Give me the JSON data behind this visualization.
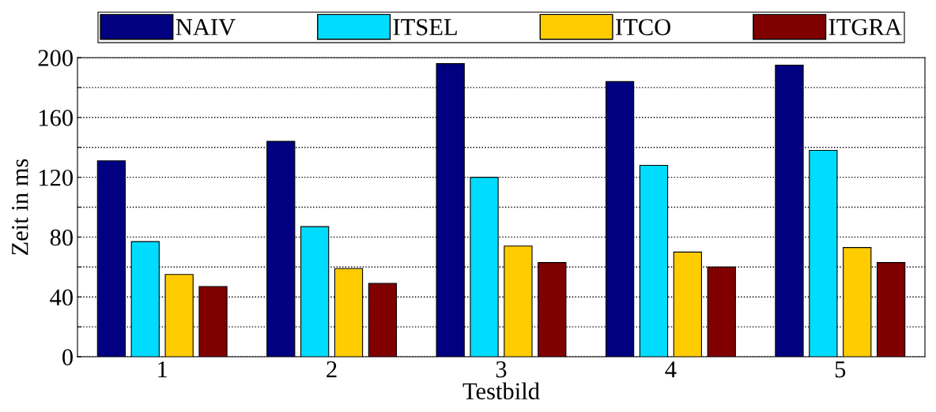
{
  "chart_data": {
    "type": "bar",
    "xlabel": "Testbild",
    "ylabel": "Zeit in ms",
    "categories": [
      "1",
      "2",
      "3",
      "4",
      "5"
    ],
    "series": [
      {
        "name": "NAIV",
        "color": "#000080",
        "values": [
          131,
          144,
          196,
          184,
          195
        ]
      },
      {
        "name": "ITSEL",
        "color": "#00dcff",
        "values": [
          77,
          87,
          120,
          128,
          138
        ]
      },
      {
        "name": "ITCO",
        "color": "#ffcc00",
        "values": [
          55,
          59,
          74,
          70,
          73
        ]
      },
      {
        "name": "ITGRA",
        "color": "#800000",
        "values": [
          47,
          49,
          63,
          60,
          63
        ]
      }
    ],
    "ylim": [
      0,
      200
    ],
    "yticks": [
      0,
      {
        "value": 20,
        "label": null
      },
      40,
      {
        "value": 60,
        "label": null
      },
      80,
      {
        "value": 100,
        "label": null
      },
      120,
      {
        "value": 140,
        "label": null
      },
      160,
      {
        "value": 180,
        "label": null
      },
      200
    ],
    "grid": "y",
    "legend": "top"
  }
}
